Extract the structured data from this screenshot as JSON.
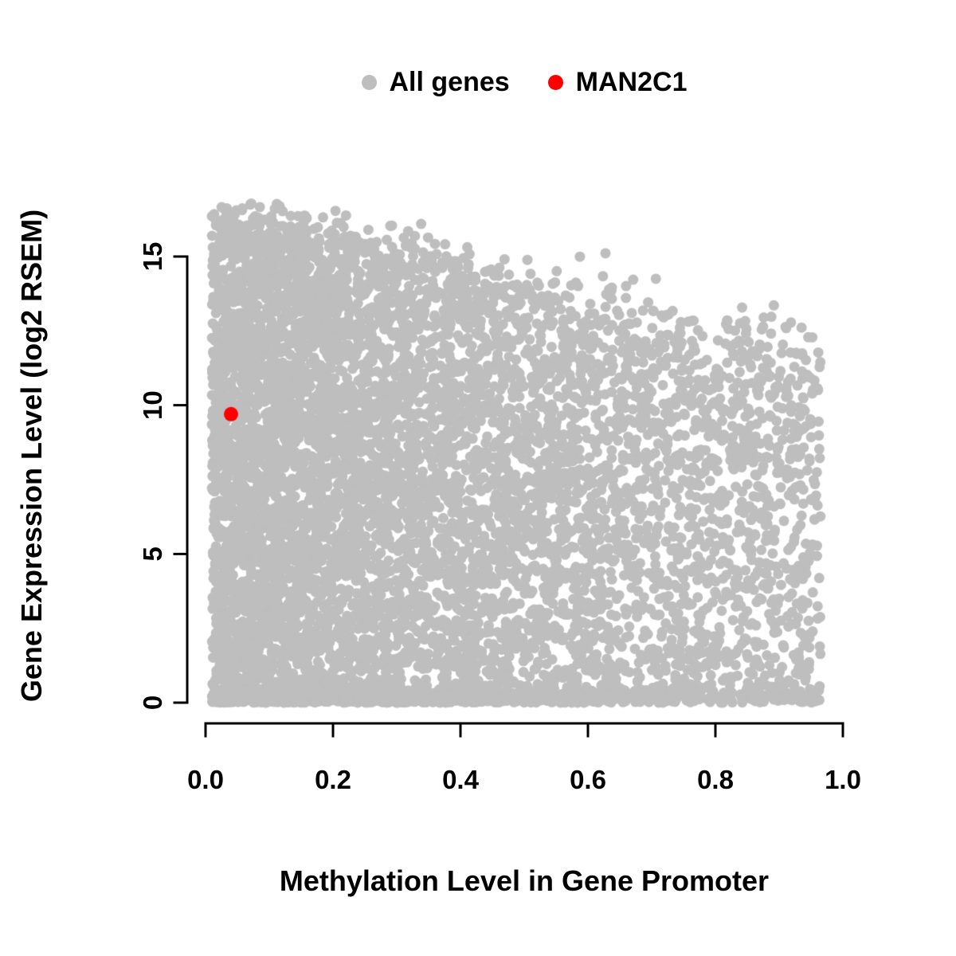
{
  "figure": {
    "background": "#FFFFFF"
  },
  "chart_data": {
    "type": "scatter",
    "title": "",
    "xlabel": "Methylation Level in Gene Promoter",
    "ylabel": "Gene Expression Level (log2 RSEM)",
    "xlim": [
      0.0,
      1.0
    ],
    "ylim": [
      0,
      17
    ],
    "x_ticks": [
      0.0,
      0.2,
      0.4,
      0.6,
      0.8,
      1.0
    ],
    "x_tick_labels": [
      "0.0",
      "0.2",
      "0.4",
      "0.6",
      "0.8",
      "1.0"
    ],
    "y_ticks": [
      0,
      5,
      10,
      15
    ],
    "y_tick_labels": [
      "0",
      "5",
      "10",
      "15"
    ],
    "grid": false,
    "legend_position": "top-center",
    "legend": [
      {
        "label": "All genes",
        "color": "#BEBEBE"
      },
      {
        "label": "MAN2C1",
        "color": "#FF0000"
      }
    ],
    "series": [
      {
        "name": "All genes",
        "type": "cloud",
        "color": "#BEBEBE",
        "n_points": 8000,
        "seed": 7,
        "point_radius": 6.5,
        "x_range": [
          0.01,
          0.965
        ],
        "y_range": [
          0,
          16.8
        ],
        "y_max_intercept": 16.8,
        "y_max_slope": -4.8,
        "x_left_skew": 0.55,
        "bottom_band_fraction": 0.12,
        "description": "Dense gray cloud of all genes; maximum expression declines roughly linearly from ~16.8 log2 RSEM at methylation 0 to ~12 at methylation 1; points fill down to 0 across the full methylation range, denser at low methylation."
      },
      {
        "name": "MAN2C1",
        "type": "points",
        "color": "#FF0000",
        "point_radius": 9,
        "points": [
          [
            0.04,
            9.7
          ]
        ]
      }
    ]
  }
}
